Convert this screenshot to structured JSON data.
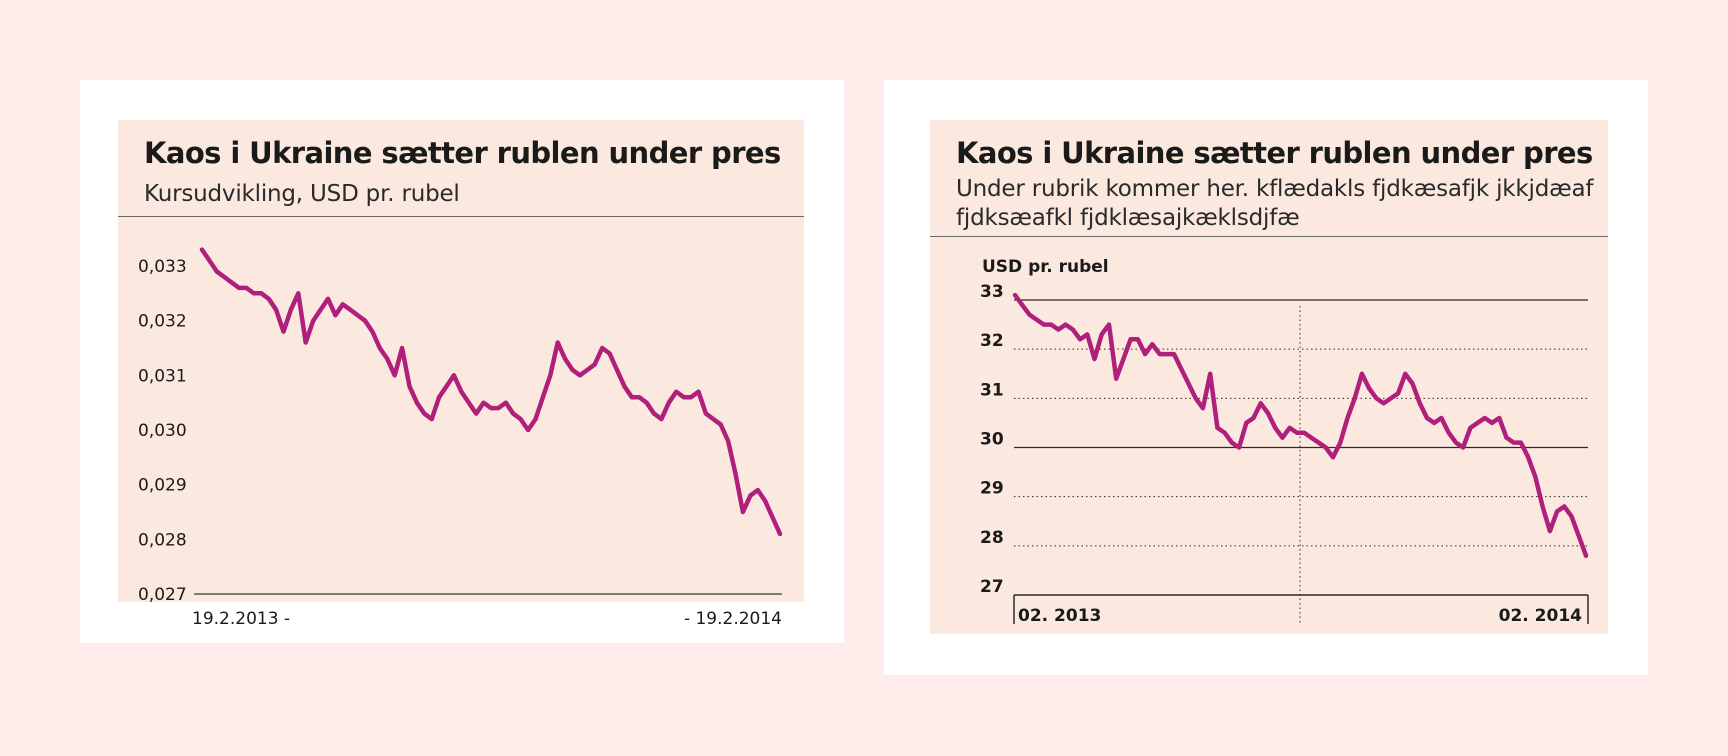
{
  "charts": [
    {
      "title": "Kaos i Ukraine sætter rublen under pres",
      "subtitle": "Kursudvikling, USD pr. rubel"
    },
    {
      "title": "Kaos i Ukraine sætter rublen under pres",
      "subtitle": "Under rubrik kommer her. kflædakls fjdkæsafjk jkkjdæaf fjdksæafkl fjdklæsajkæklsdjfæ"
    }
  ],
  "colors": {
    "line": "#b01f7c",
    "panel": "#fbe9df",
    "page": "#fdecea"
  },
  "chart_data": [
    {
      "type": "line",
      "title": "Kaos i Ukraine sætter rublen under pres",
      "subtitle": "Kursudvikling, USD pr. rubel",
      "xlabel": "",
      "ylabel": "",
      "x_start_label": "19.2.2013 -",
      "x_end_label": "- 19.2.2014",
      "y_ticks": [
        "0,033",
        "0,032",
        "0,031",
        "0,030",
        "0,029",
        "0,028",
        "0,027"
      ],
      "y_tick_values": [
        0.033,
        0.032,
        0.031,
        0.03,
        0.029,
        0.028,
        0.027
      ],
      "ylim": [
        0.027,
        0.033
      ],
      "grid": false,
      "series": [
        {
          "values": [
            0.0333,
            0.0331,
            0.0329,
            0.0328,
            0.0327,
            0.0326,
            0.0326,
            0.0325,
            0.0325,
            0.0324,
            0.0322,
            0.0318,
            0.0322,
            0.0325,
            0.0316,
            0.032,
            0.0322,
            0.0324,
            0.0321,
            0.0323,
            0.0322,
            0.0321,
            0.032,
            0.0318,
            0.0315,
            0.0313,
            0.031,
            0.0315,
            0.0308,
            0.0305,
            0.0303,
            0.0302,
            0.0306,
            0.0308,
            0.031,
            0.0307,
            0.0305,
            0.0303,
            0.0305,
            0.0304,
            0.0304,
            0.0305,
            0.0303,
            0.0302,
            0.03,
            0.0302,
            0.0306,
            0.031,
            0.0316,
            0.0313,
            0.0311,
            0.031,
            0.0311,
            0.0312,
            0.0315,
            0.0314,
            0.0311,
            0.0308,
            0.0306,
            0.0306,
            0.0305,
            0.0303,
            0.0302,
            0.0305,
            0.0307,
            0.0306,
            0.0306,
            0.0307,
            0.0303,
            0.0302,
            0.0301,
            0.0298,
            0.0292,
            0.0285,
            0.0288,
            0.0289,
            0.0287,
            0.0284,
            0.0281
          ]
        }
      ]
    },
    {
      "type": "line",
      "title": "Kaos i Ukraine sætter rublen under pres",
      "subtitle": "Under rubrik kommer her. kflædakls fjdkæsafjk jkkjdæaf fjdksæafkl fjdklæsajkæklsdjfæ",
      "xlabel": "",
      "ylabel": "USD pr. rubel",
      "x_start_label": "02. 2013",
      "x_end_label": "02. 2014",
      "y_ticks": [
        "33",
        "32",
        "31",
        "30",
        "29",
        "28",
        "27"
      ],
      "y_tick_values": [
        33,
        32,
        31,
        30,
        29,
        28,
        27
      ],
      "ylim": [
        27,
        33
      ],
      "grid": "dotted horizontal, solid at 33 and 30, dotted vertical at mid-year",
      "series": [
        {
          "values": [
            33.1,
            32.9,
            32.7,
            32.6,
            32.5,
            32.5,
            32.4,
            32.5,
            32.4,
            32.2,
            32.3,
            31.8,
            32.3,
            32.5,
            31.4,
            31.8,
            32.2,
            32.2,
            31.9,
            32.1,
            31.9,
            31.9,
            31.9,
            31.6,
            31.3,
            31.0,
            30.8,
            31.5,
            30.4,
            30.3,
            30.1,
            30.0,
            30.5,
            30.6,
            30.9,
            30.7,
            30.4,
            30.2,
            30.4,
            30.3,
            30.3,
            30.2,
            30.1,
            30.0,
            29.8,
            30.1,
            30.6,
            31.0,
            31.5,
            31.2,
            31.0,
            30.9,
            31.0,
            31.1,
            31.5,
            31.3,
            30.9,
            30.6,
            30.5,
            30.6,
            30.3,
            30.1,
            30.0,
            30.4,
            30.5,
            30.6,
            30.5,
            30.6,
            30.2,
            30.1,
            30.1,
            29.8,
            29.4,
            28.8,
            28.3,
            28.7,
            28.8,
            28.6,
            28.2,
            27.8
          ]
        }
      ]
    }
  ]
}
